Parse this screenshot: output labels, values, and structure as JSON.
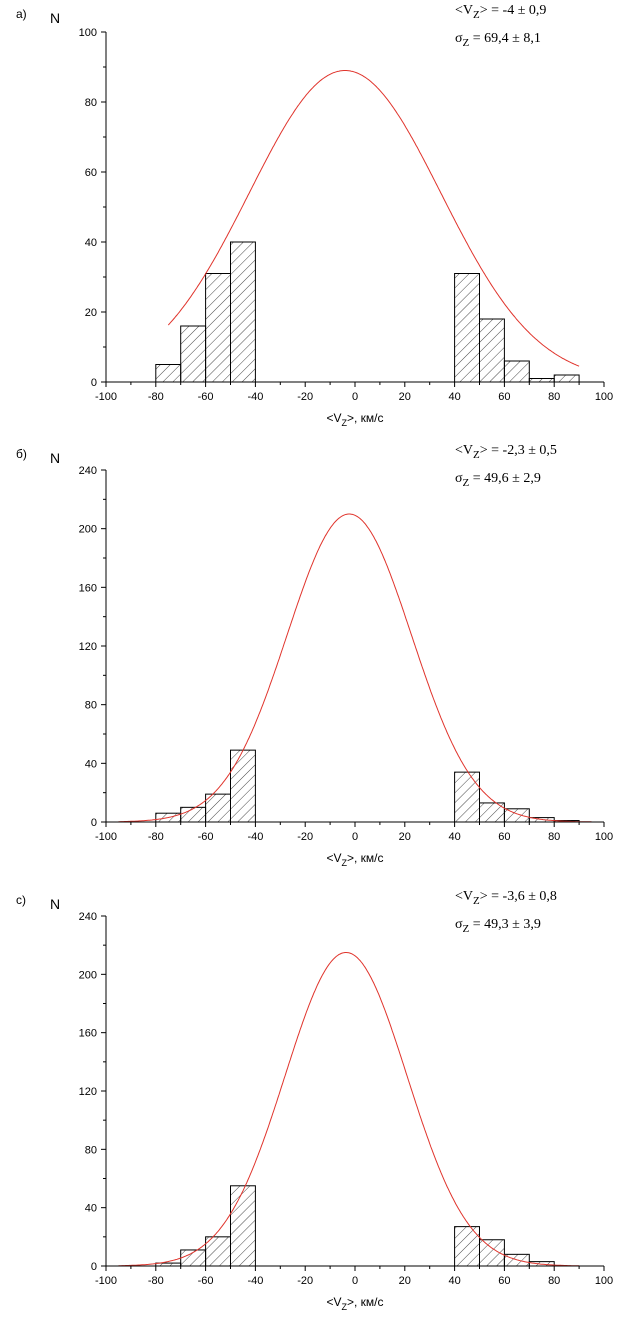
{
  "chart_data": [
    {
      "type": "bar",
      "panel_label": "а)",
      "ylabel": "N",
      "xlabel_parts": [
        "<V",
        "Z",
        ">, км/с"
      ],
      "xlim": [
        -100,
        100
      ],
      "ylim": [
        0,
        100
      ],
      "x_ticks": [
        -100,
        -80,
        -60,
        -40,
        -20,
        0,
        20,
        40,
        60,
        80,
        100
      ],
      "y_ticks": [
        0,
        20,
        40,
        60,
        80,
        100
      ],
      "grid": false,
      "bins": [
        {
          "x0": -80,
          "x1": -70,
          "value": 5
        },
        {
          "x0": -70,
          "x1": -60,
          "value": 16
        },
        {
          "x0": -60,
          "x1": -50,
          "value": 31
        },
        {
          "x0": -50,
          "x1": -40,
          "value": 40
        },
        {
          "x0": 40,
          "x1": 50,
          "value": 31
        },
        {
          "x0": 50,
          "x1": 60,
          "value": 18
        },
        {
          "x0": 60,
          "x1": 70,
          "value": 6
        },
        {
          "x0": 70,
          "x1": 80,
          "value": 1
        },
        {
          "x0": 80,
          "x1": 90,
          "value": 2
        }
      ],
      "fit": {
        "type": "gaussian",
        "mean": -4,
        "amplitude": 89,
        "width": 38.5,
        "x_range": [
          -75,
          90
        ],
        "color": "#e0342c"
      },
      "annotations": [
        {
          "parts": [
            "<V",
            "Z",
            "> = -4 ± 0,9"
          ]
        },
        {
          "parts": [
            "σ",
            "Z",
            " = 69,4 ± 8,1"
          ]
        }
      ]
    },
    {
      "type": "bar",
      "panel_label": "б)",
      "ylabel": "N",
      "xlabel_parts": [
        "<V",
        "Z",
        ">, км/с"
      ],
      "xlim": [
        -100,
        100
      ],
      "ylim": [
        0,
        240
      ],
      "x_ticks": [
        -100,
        -80,
        -60,
        -40,
        -20,
        0,
        20,
        40,
        60,
        80,
        100
      ],
      "y_ticks": [
        0,
        40,
        80,
        120,
        160,
        200,
        240
      ],
      "grid": false,
      "bins": [
        {
          "x0": -80,
          "x1": -70,
          "value": 6
        },
        {
          "x0": -70,
          "x1": -60,
          "value": 10
        },
        {
          "x0": -60,
          "x1": -50,
          "value": 19
        },
        {
          "x0": -50,
          "x1": -40,
          "value": 49
        },
        {
          "x0": 40,
          "x1": 50,
          "value": 34
        },
        {
          "x0": 50,
          "x1": 60,
          "value": 13
        },
        {
          "x0": 60,
          "x1": 70,
          "value": 9
        },
        {
          "x0": 70,
          "x1": 80,
          "value": 3
        },
        {
          "x0": 80,
          "x1": 90,
          "value": 1
        }
      ],
      "fit": {
        "type": "gaussian",
        "mean": -2.3,
        "amplitude": 210,
        "width": 25,
        "x_range": [
          -95,
          95
        ],
        "color": "#e0342c"
      },
      "annotations": [
        {
          "parts": [
            "<V",
            "Z",
            "> = -2,3 ± 0,5"
          ]
        },
        {
          "parts": [
            "σ",
            "Z",
            " = 49,6 ± 2,9"
          ]
        }
      ]
    },
    {
      "type": "bar",
      "panel_label": "с)",
      "ylabel": "N",
      "xlabel_parts": [
        "<V",
        "Z",
        ">, км/с"
      ],
      "xlim": [
        -100,
        100
      ],
      "ylim": [
        0,
        240
      ],
      "x_ticks": [
        -100,
        -80,
        -60,
        -40,
        -20,
        0,
        20,
        40,
        60,
        80,
        100
      ],
      "y_ticks": [
        0,
        40,
        80,
        120,
        160,
        200,
        240
      ],
      "grid": false,
      "bins": [
        {
          "x0": -80,
          "x1": -70,
          "value": 2
        },
        {
          "x0": -70,
          "x1": -60,
          "value": 11
        },
        {
          "x0": -60,
          "x1": -50,
          "value": 20
        },
        {
          "x0": -50,
          "x1": -40,
          "value": 55
        },
        {
          "x0": 40,
          "x1": 50,
          "value": 27
        },
        {
          "x0": 50,
          "x1": 60,
          "value": 18
        },
        {
          "x0": 60,
          "x1": 70,
          "value": 8
        },
        {
          "x0": 70,
          "x1": 80,
          "value": 3
        }
      ],
      "fit": {
        "type": "gaussian",
        "mean": -3.6,
        "amplitude": 215,
        "width": 24.5,
        "x_range": [
          -95,
          90
        ],
        "color": "#e0342c"
      },
      "annotations": [
        {
          "parts": [
            "<V",
            "Z",
            "> = -3,6 ± 0,8"
          ]
        },
        {
          "parts": [
            "σ",
            "Z",
            " = 49,3 ± 3,9"
          ]
        }
      ]
    }
  ]
}
